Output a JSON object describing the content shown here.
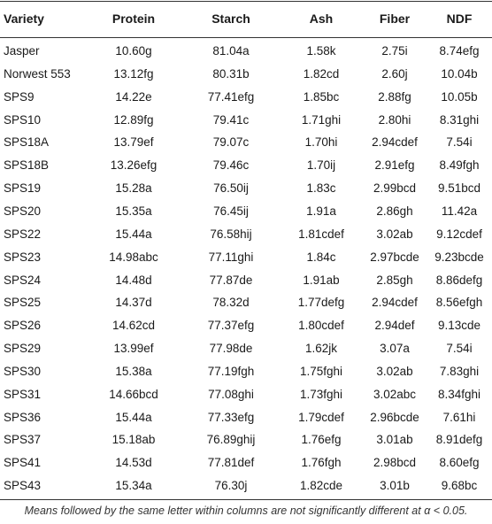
{
  "table": {
    "headers": [
      "Variety",
      "Protein",
      "Starch",
      "Ash",
      "Fiber",
      "NDF"
    ],
    "rows": [
      [
        "Jasper",
        "10.60g",
        "81.04a",
        "1.58k",
        "2.75i",
        "8.74efg"
      ],
      [
        "Norwest 553",
        "13.12fg",
        "80.31b",
        "1.82cd",
        "2.60j",
        "10.04b"
      ],
      [
        "SPS9",
        "14.22e",
        "77.41efg",
        "1.85bc",
        "2.88fg",
        "10.05b"
      ],
      [
        "SPS10",
        "12.89fg",
        "79.41c",
        "1.71ghi",
        "2.80hi",
        "8.31ghi"
      ],
      [
        "SPS18A",
        "13.79ef",
        "79.07c",
        "1.70hi",
        "2.94cdef",
        "7.54i"
      ],
      [
        "SPS18B",
        "13.26efg",
        "79.46c",
        "1.70ij",
        "2.91efg",
        "8.49fgh"
      ],
      [
        "SPS19",
        "15.28a",
        "76.50ij",
        "1.83c",
        "2.99bcd",
        "9.51bcd"
      ],
      [
        "SPS20",
        "15.35a",
        "76.45ij",
        "1.91a",
        "2.86gh",
        "11.42a"
      ],
      [
        "SPS22",
        "15.44a",
        "76.58hij",
        "1.81cdef",
        "3.02ab",
        "9.12cdef"
      ],
      [
        "SPS23",
        "14.98abc",
        "77.11ghi",
        "1.84c",
        "2.97bcde",
        "9.23bcde"
      ],
      [
        "SPS24",
        "14.48d",
        "77.87de",
        "1.91ab",
        "2.85gh",
        "8.86defg"
      ],
      [
        "SPS25",
        "14.37d",
        "78.32d",
        "1.77defg",
        "2.94cdef",
        "8.56efgh"
      ],
      [
        "SPS26",
        "14.62cd",
        "77.37efg",
        "1.80cdef",
        "2.94def",
        "9.13cde"
      ],
      [
        "SPS29",
        "13.99ef",
        "77.98de",
        "1.62jk",
        "3.07a",
        "7.54i"
      ],
      [
        "SPS30",
        "15.38a",
        "77.19fgh",
        "1.75fghi",
        "3.02ab",
        "7.83ghi"
      ],
      [
        "SPS31",
        "14.66bcd",
        "77.08ghi",
        "1.73fghi",
        "3.02abc",
        "8.34fghi"
      ],
      [
        "SPS36",
        "15.44a",
        "77.33efg",
        "1.79cdef",
        "2.96bcde",
        "7.61hi"
      ],
      [
        "SPS37",
        "15.18ab",
        "76.89ghij",
        "1.76efg",
        "3.01ab",
        "8.91defg"
      ],
      [
        "SPS41",
        "14.53d",
        "77.81def",
        "1.76fgh",
        "2.98bcd",
        "8.60efg"
      ],
      [
        "SPS43",
        "15.34a",
        "76.30j",
        "1.82cde",
        "3.01b",
        "9.68bc"
      ]
    ]
  },
  "footnote": "Means followed by the same letter within columns are not significantly different at α < 0.05."
}
